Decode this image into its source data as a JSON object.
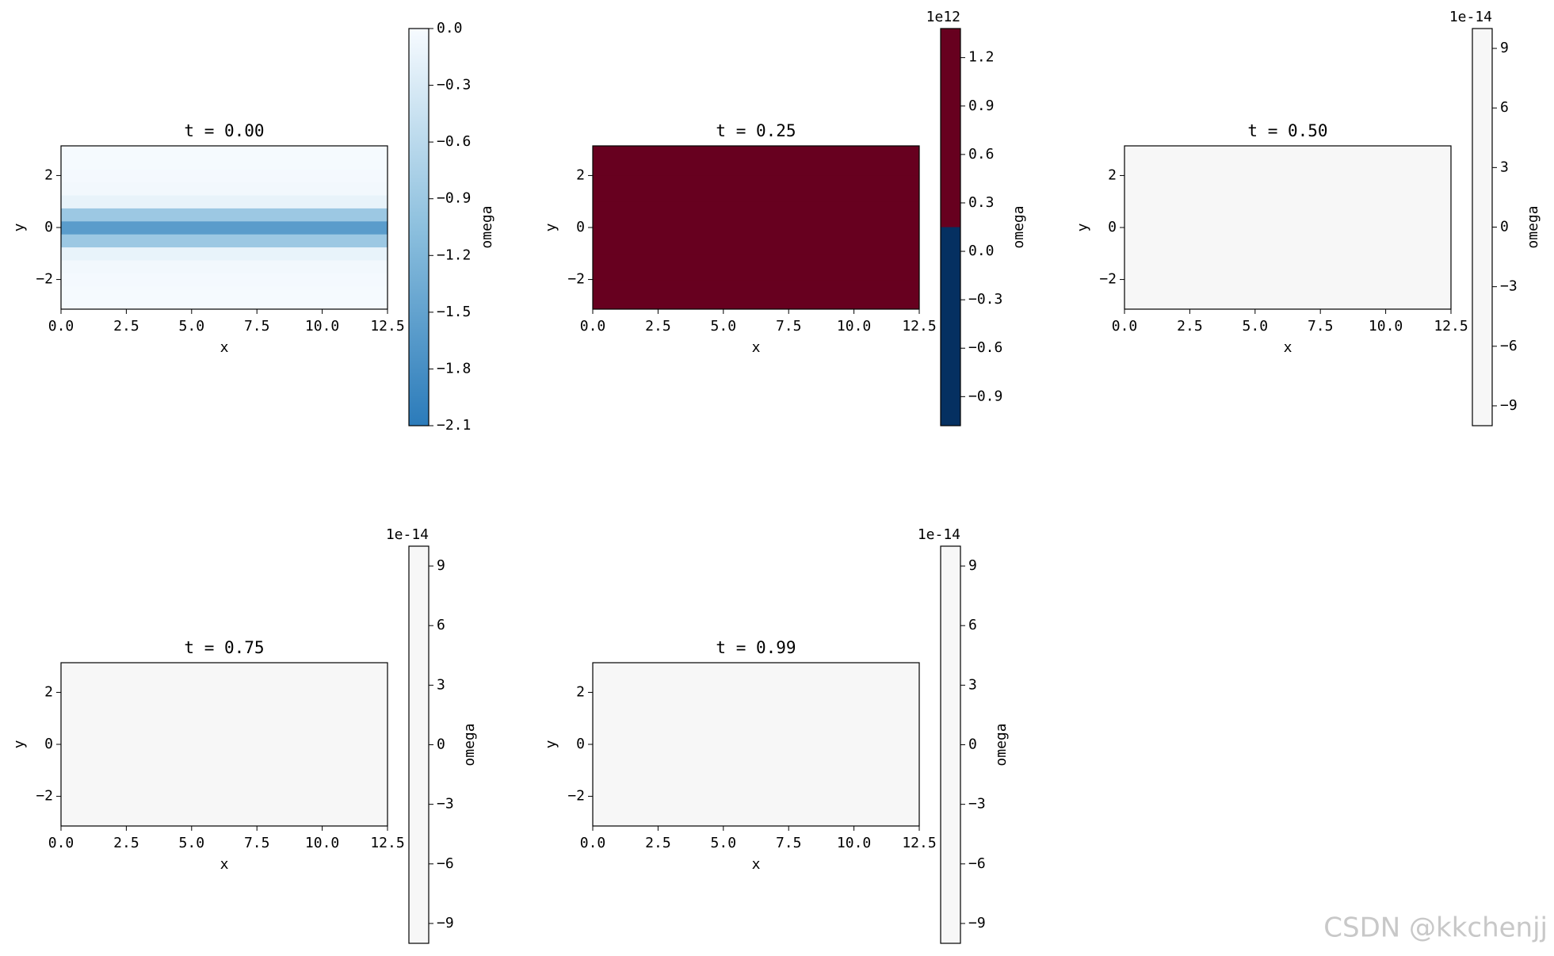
{
  "chart_data": [
    {
      "type": "heatmap",
      "title": "t = 0.00",
      "xlabel": "x",
      "ylabel": "y",
      "colorbar_label": "omega",
      "xlim": [
        0,
        12.5
      ],
      "xticks": [
        {
          "value": 0,
          "label": "0.0"
        },
        2.5,
        {
          "value": 5,
          "label": "5.0"
        },
        7.5,
        {
          "value": 10,
          "label": "10.0"
        },
        12.5
      ],
      "ylim": [
        -3.14159,
        3.14159
      ],
      "yticks": [
        {
          "value": -2,
          "label": "−2"
        },
        0,
        2
      ],
      "y": [
        -3,
        -2.5,
        -2,
        -1.5,
        -1,
        -0.5,
        0,
        0.5,
        1,
        1.5,
        2,
        2.5,
        3
      ],
      "values": [
        -0.02,
        -0.02,
        -0.03,
        -0.05,
        -0.15,
        -0.9,
        -1.6,
        -0.9,
        -0.15,
        -0.05,
        -0.03,
        -0.02,
        -0.02
      ],
      "colormap": [
        "#2b7bba",
        "#8dc0de",
        "#f7fbff"
      ],
      "discrete": false,
      "clim": [
        -2.1,
        0
      ],
      "cticks": [
        {
          "value": 0,
          "label": "0.0"
        },
        {
          "value": -0.3,
          "label": "−0.3"
        },
        {
          "value": -0.6,
          "label": "−0.6"
        },
        {
          "value": -0.9,
          "label": "−0.9"
        },
        {
          "value": -1.2,
          "label": "−1.2"
        },
        {
          "value": -1.5,
          "label": "−1.5"
        },
        {
          "value": -1.8,
          "label": "−1.8"
        },
        {
          "value": -2.1,
          "label": "−2.1"
        }
      ]
    },
    {
      "type": "heatmap",
      "title": "t = 0.25",
      "xlabel": "x",
      "ylabel": "y",
      "colorbar_label": "omega",
      "colorbar_offset": "1e12",
      "xlim": [
        0,
        12.5
      ],
      "xticks": [
        {
          "value": 0,
          "label": "0.0"
        },
        2.5,
        {
          "value": 5,
          "label": "5.0"
        },
        7.5,
        {
          "value": 10,
          "label": "10.0"
        },
        12.5
      ],
      "ylim": [
        -3.14159,
        3.14159
      ],
      "yticks": [
        {
          "value": -2,
          "label": "−2"
        },
        0,
        2
      ],
      "y": [
        -2.5,
        -1.5,
        -0.5,
        0.5,
        1.5,
        2.5
      ],
      "values": [
        1300000000000,
        1300000000000,
        1300000000000,
        1300000000000,
        1300000000000,
        1300000000000
      ],
      "colormap": [
        "#053061",
        "#67001f"
      ],
      "discrete": true,
      "clim": [
        -1080000000000,
        1380000000000
      ],
      "cticks": [
        {
          "value": 1200000000000,
          "label": "1.2"
        },
        {
          "value": 900000000000,
          "label": "0.9"
        },
        {
          "value": 600000000000,
          "label": "0.6"
        },
        {
          "value": 300000000000,
          "label": "0.3"
        },
        {
          "value": 0,
          "label": "0.0"
        },
        {
          "value": -300000000000,
          "label": "−0.3"
        },
        {
          "value": -600000000000,
          "label": "−0.6"
        },
        {
          "value": -900000000000,
          "label": "−0.9"
        }
      ]
    },
    {
      "type": "heatmap",
      "title": "t = 0.50",
      "xlabel": "x",
      "ylabel": "y",
      "colorbar_label": "omega",
      "colorbar_offset": "1e-14",
      "xlim": [
        0,
        12.5
      ],
      "xticks": [
        {
          "value": 0,
          "label": "0.0"
        },
        2.5,
        {
          "value": 5,
          "label": "5.0"
        },
        7.5,
        {
          "value": 10,
          "label": "10.0"
        },
        12.5
      ],
      "ylim": [
        -3.14159,
        3.14159
      ],
      "yticks": [
        {
          "value": -2,
          "label": "−2"
        },
        0,
        2
      ],
      "y": [
        0
      ],
      "values": [
        0
      ],
      "colormap": [
        "#f7f7f7",
        "#f7f7f7"
      ],
      "discrete": false,
      "clim": [
        -1e-13,
        1e-13
      ],
      "cticks": [
        {
          "value": 9e-14,
          "label": "9"
        },
        {
          "value": 6e-14,
          "label": "6"
        },
        {
          "value": 3e-14,
          "label": "3"
        },
        0,
        {
          "value": -3e-14,
          "label": "−3"
        },
        {
          "value": -6e-14,
          "label": "−6"
        },
        {
          "value": -9e-14,
          "label": "−9"
        }
      ]
    },
    {
      "type": "heatmap",
      "title": "t = 0.75",
      "xlabel": "x",
      "ylabel": "y",
      "colorbar_label": "omega",
      "colorbar_offset": "1e-14",
      "xlim": [
        0,
        12.5
      ],
      "xticks": [
        {
          "value": 0,
          "label": "0.0"
        },
        2.5,
        {
          "value": 5,
          "label": "5.0"
        },
        7.5,
        {
          "value": 10,
          "label": "10.0"
        },
        12.5
      ],
      "ylim": [
        -3.14159,
        3.14159
      ],
      "yticks": [
        {
          "value": -2,
          "label": "−2"
        },
        0,
        2
      ],
      "y": [
        0
      ],
      "values": [
        0
      ],
      "colormap": [
        "#f7f7f7",
        "#f7f7f7"
      ],
      "discrete": false,
      "clim": [
        -1e-13,
        1e-13
      ],
      "cticks": [
        {
          "value": 9e-14,
          "label": "9"
        },
        {
          "value": 6e-14,
          "label": "6"
        },
        {
          "value": 3e-14,
          "label": "3"
        },
        0,
        {
          "value": -3e-14,
          "label": "−3"
        },
        {
          "value": -6e-14,
          "label": "−6"
        },
        {
          "value": -9e-14,
          "label": "−9"
        }
      ]
    },
    {
      "type": "heatmap",
      "title": "t = 0.99",
      "xlabel": "x",
      "ylabel": "y",
      "colorbar_label": "omega",
      "colorbar_offset": "1e-14",
      "xlim": [
        0,
        12.5
      ],
      "xticks": [
        {
          "value": 0,
          "label": "0.0"
        },
        2.5,
        {
          "value": 5,
          "label": "5.0"
        },
        7.5,
        {
          "value": 10,
          "label": "10.0"
        },
        12.5
      ],
      "ylim": [
        -3.14159,
        3.14159
      ],
      "yticks": [
        {
          "value": -2,
          "label": "−2"
        },
        0,
        2
      ],
      "y": [
        0
      ],
      "values": [
        0
      ],
      "colormap": [
        "#f7f7f7",
        "#f7f7f7"
      ],
      "discrete": false,
      "clim": [
        -1e-13,
        1e-13
      ],
      "cticks": [
        {
          "value": 9e-14,
          "label": "9"
        },
        {
          "value": 6e-14,
          "label": "6"
        },
        {
          "value": 3e-14,
          "label": "3"
        },
        0,
        {
          "value": -3e-14,
          "label": "−3"
        },
        {
          "value": -6e-14,
          "label": "−6"
        },
        {
          "value": -9e-14,
          "label": "−9"
        }
      ]
    }
  ],
  "watermark": "CSDN @kkchenjj"
}
